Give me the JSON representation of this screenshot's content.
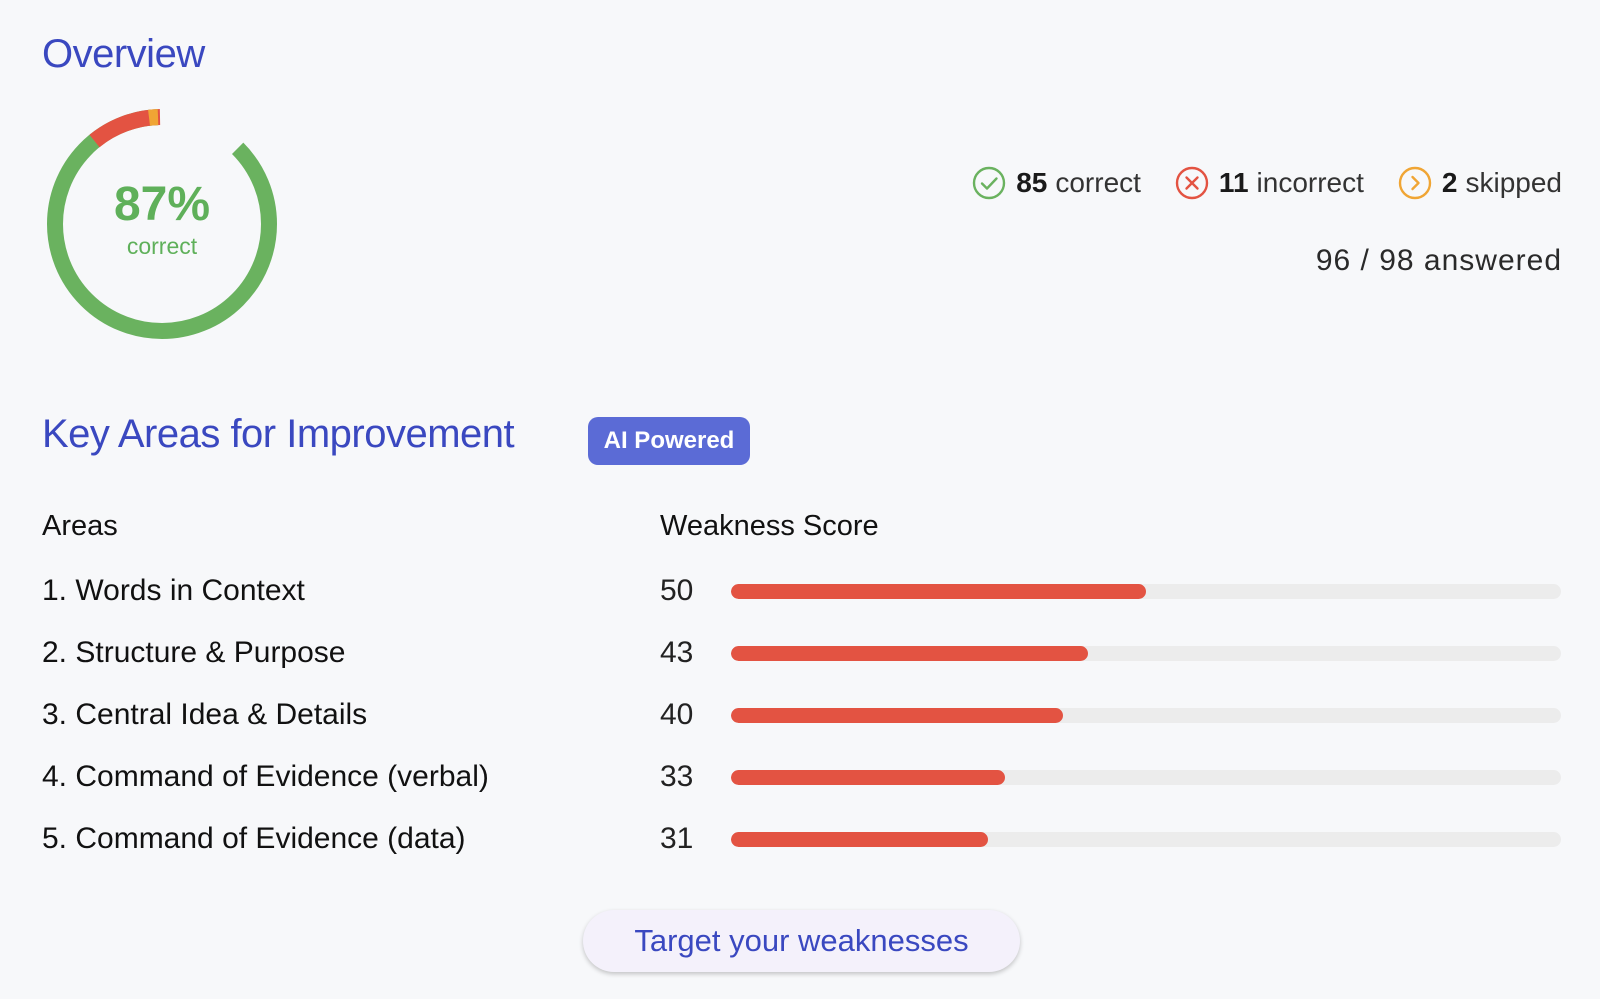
{
  "overview": {
    "title": "Overview",
    "percent_text": "87%",
    "percent_label": "correct",
    "percent_value": 87,
    "colors": {
      "correct": "#6ab25f",
      "incorrect": "#e35342",
      "skipped": "#f0a534"
    }
  },
  "stats": {
    "correct": {
      "count": "85",
      "label": "correct",
      "icon": "check-circle-icon"
    },
    "incorrect": {
      "count": "11",
      "label": "incorrect",
      "icon": "x-circle-icon"
    },
    "skipped": {
      "count": "2",
      "label": "skipped",
      "icon": "chevron-right-circle-icon"
    },
    "answered": "96 / 98 answered"
  },
  "improvement": {
    "title": "Key Areas for Improvement",
    "badge": "AI Powered",
    "columns": {
      "areas": "Areas",
      "score": "Weakness Score"
    },
    "max_score": 100,
    "bar_color": "#e35342",
    "areas": [
      {
        "label": "1. Words in Context",
        "score": "50",
        "value": 50
      },
      {
        "label": "2. Structure & Purpose",
        "score": "43",
        "value": 43
      },
      {
        "label": "3. Central Idea & Details",
        "score": "40",
        "value": 40
      },
      {
        "label": "4. Command of Evidence (verbal)",
        "score": "33",
        "value": 33
      },
      {
        "label": "5. Command of Evidence (data)",
        "score": "31",
        "value": 31
      }
    ],
    "cta_label": "Target your weaknesses"
  }
}
